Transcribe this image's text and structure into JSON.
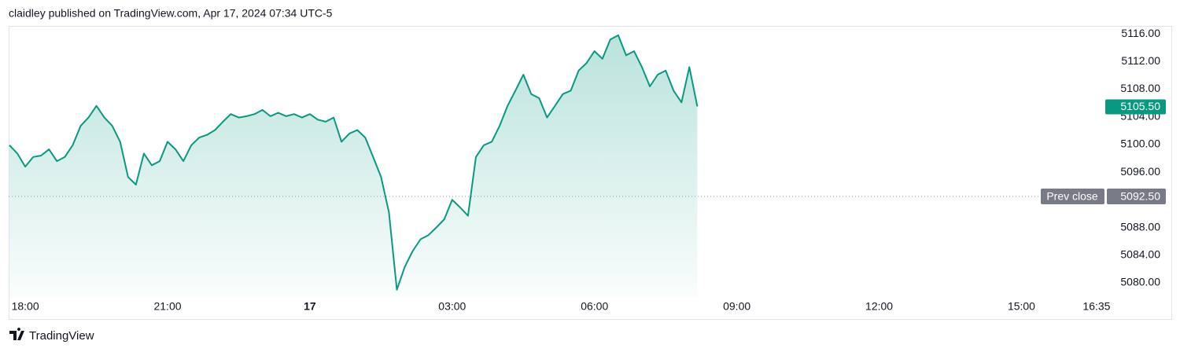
{
  "header": "claidley published on TradingView.com, Apr 17, 2024 07:34 UTC-5",
  "footer": "TradingView",
  "chart_data": {
    "type": "area",
    "x": [
      "17:40",
      "17:50",
      "18:00",
      "18:10",
      "18:20",
      "18:30",
      "18:40",
      "18:50",
      "19:00",
      "19:10",
      "19:20",
      "19:30",
      "19:40",
      "19:50",
      "20:00",
      "20:10",
      "20:20",
      "20:30",
      "20:40",
      "20:50",
      "21:00",
      "21:10",
      "21:20",
      "21:30",
      "21:40",
      "21:50",
      "22:00",
      "22:10",
      "22:20",
      "22:30",
      "22:40",
      "22:50",
      "23:00",
      "23:10",
      "23:20",
      "23:30",
      "23:40",
      "23:50",
      "00:00",
      "00:10",
      "00:20",
      "00:30",
      "00:40",
      "00:50",
      "01:00",
      "01:10",
      "01:20",
      "01:30",
      "01:40",
      "01:50",
      "02:00",
      "02:10",
      "02:20",
      "02:30",
      "02:40",
      "02:50",
      "03:00",
      "03:10",
      "03:20",
      "03:30",
      "03:40",
      "03:50",
      "04:00",
      "04:10",
      "04:20",
      "04:30",
      "04:40",
      "04:50",
      "05:00",
      "05:10",
      "05:20",
      "05:30",
      "05:40",
      "05:50",
      "06:00",
      "06:10",
      "06:20",
      "06:30",
      "06:40",
      "06:50",
      "07:00",
      "07:10",
      "07:20",
      "07:30",
      "07:40",
      "07:50",
      "08:00",
      "08:10"
    ],
    "series": [
      {
        "color": "#089981",
        "values": [
          5099.9,
          5098.7,
          5096.8,
          5098.2,
          5098.4,
          5099.3,
          5097.6,
          5098.2,
          5099.9,
          5102.7,
          5103.9,
          5105.6,
          5103.9,
          5102.7,
          5100.4,
          5095.3,
          5094.2,
          5098.7,
          5097.0,
          5097.6,
          5100.4,
          5099.3,
          5097.6,
          5099.9,
          5101.0,
          5101.4,
          5102.1,
          5103.3,
          5104.4,
          5103.9,
          5104.1,
          5104.4,
          5105.0,
          5104.1,
          5104.6,
          5104.1,
          5104.4,
          5103.9,
          5104.4,
          5103.6,
          5103.3,
          5103.9,
          5100.4,
          5101.6,
          5102.1,
          5101.0,
          5098.2,
          5095.3,
          5090.2,
          5079.0,
          5082.3,
          5084.6,
          5086.3,
          5086.9,
          5088.0,
          5089.2,
          5092.0,
          5090.9,
          5089.7,
          5098.2,
          5099.9,
          5100.4,
          5102.7,
          5105.6,
          5107.8,
          5110.1,
          5107.3,
          5106.7,
          5103.9,
          5105.6,
          5107.3,
          5107.8,
          5110.7,
          5111.8,
          5113.5,
          5112.4,
          5115.2,
          5115.8,
          5112.9,
          5113.5,
          5111.2,
          5108.4,
          5110.1,
          5110.7,
          5107.8,
          5106.1,
          5111.2,
          5105.5
        ]
      }
    ],
    "last_label": "5105.50",
    "prev_close": {
      "label": "Prev close",
      "value": 5092.5,
      "value_label": "5092.50"
    },
    "xlim": [
      "17:39",
      "16:46"
    ],
    "xticks": [
      "18:00",
      "21:00",
      "17",
      "03:00",
      "06:00",
      "09:00",
      "12:00",
      "15:00",
      "16:35"
    ],
    "ylim": [
      5077.95,
      5117.15
    ],
    "yticks": [
      {
        "value": 5080,
        "label": "5080.00"
      },
      {
        "value": 5084,
        "label": "5084.00"
      },
      {
        "value": 5088,
        "label": "5088.00"
      },
      {
        "value": 5092,
        "label": "5092.00"
      },
      {
        "value": 5096,
        "label": "5096.00"
      },
      {
        "value": 5100,
        "label": "5100.00"
      },
      {
        "value": 5104,
        "label": "5104.00"
      },
      {
        "value": 5108,
        "label": "5108.00"
      },
      {
        "value": 5112,
        "label": "5112.00"
      },
      {
        "value": 5116,
        "label": "5116.00"
      }
    ]
  }
}
